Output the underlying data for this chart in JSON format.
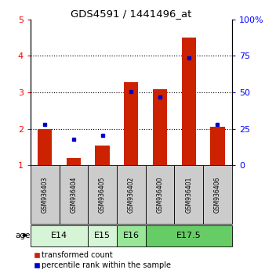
{
  "title": "GDS4591 / 1441496_at",
  "samples": [
    "GSM936403",
    "GSM936404",
    "GSM936405",
    "GSM936402",
    "GSM936400",
    "GSM936401",
    "GSM936406"
  ],
  "red_values": [
    2.0,
    1.2,
    1.55,
    3.28,
    3.08,
    4.5,
    2.05
  ],
  "blue_values": [
    2.12,
    1.72,
    1.82,
    3.02,
    2.88,
    3.95,
    2.12
  ],
  "ylim_left": [
    1,
    5
  ],
  "ylim_right": [
    0,
    100
  ],
  "yticks_left": [
    1,
    2,
    3,
    4,
    5
  ],
  "yticks_right": [
    0,
    25,
    50,
    75,
    100
  ],
  "age_groups": [
    {
      "label": "E14",
      "start": 0,
      "end": 1,
      "color": "#d6f5d6"
    },
    {
      "label": "E15",
      "start": 2,
      "end": 2,
      "color": "#d6f5d6"
    },
    {
      "label": "E16",
      "start": 3,
      "end": 3,
      "color": "#99e699"
    },
    {
      "label": "E17.5",
      "start": 4,
      "end": 6,
      "color": "#66cc66"
    }
  ],
  "red_color": "#cc2200",
  "blue_color": "#0000cc",
  "sample_bg_color": "#cccccc",
  "legend_red": "transformed count",
  "legend_blue": "percentile rank within the sample"
}
